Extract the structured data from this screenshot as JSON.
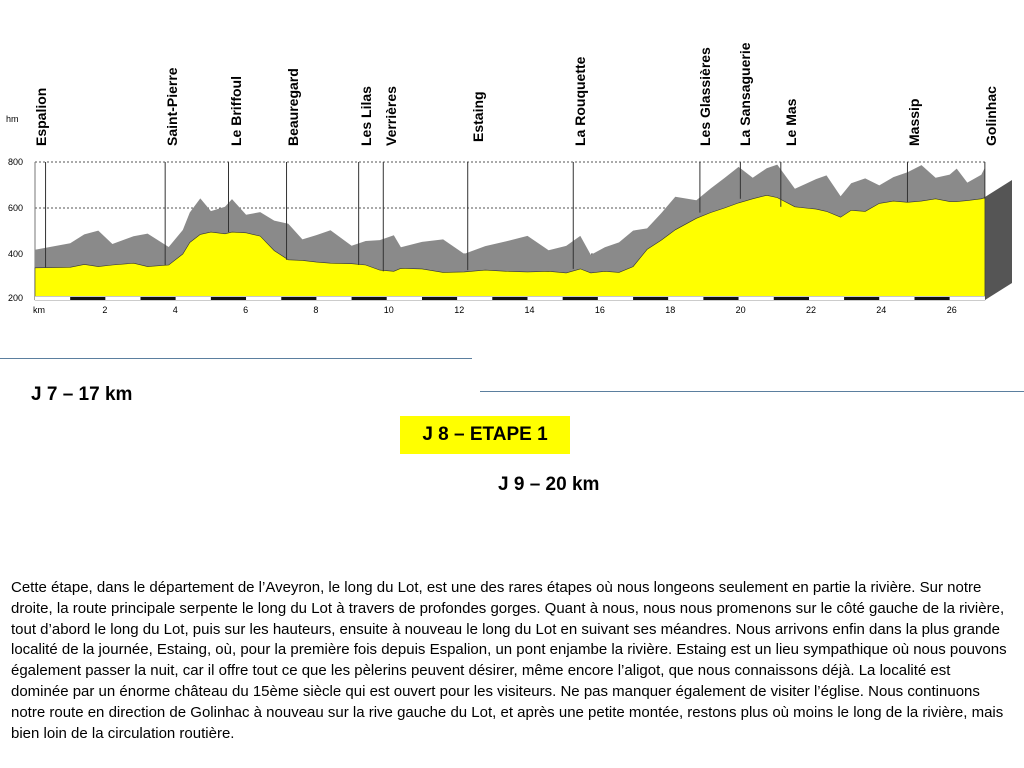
{
  "profile": {
    "unit_y": "hm",
    "unit_x": "km",
    "y_ticks": [
      "800",
      "600",
      "400",
      "200"
    ],
    "x_ticks": [
      "2",
      "4",
      "6",
      "8",
      "10",
      "12",
      "14",
      "16",
      "18",
      "20",
      "22",
      "24",
      "26"
    ],
    "colors": {
      "terrain": "#ffff00",
      "ridge": "#8a8a8a",
      "ridge_light": "#bdbdbd",
      "base": "#000000"
    }
  },
  "places": [
    "Espalion",
    "Saint-Pierre",
    "Le Briffoul",
    "Beauregard",
    "Les Lilas",
    "Verrières",
    "Estaing",
    "La Rouquette",
    "Les Glassières",
    "La Sansaguerie",
    "Le Mas",
    "Massip",
    "Golinhac"
  ],
  "chart_data": {
    "type": "area",
    "title": "",
    "xlabel": "km",
    "ylabel": "hm",
    "xlim": [
      0,
      27
    ],
    "ylim": [
      200,
      800
    ],
    "x_ticks": [
      2,
      4,
      6,
      8,
      10,
      12,
      14,
      16,
      18,
      20,
      22,
      24,
      26
    ],
    "y_ticks": [
      200,
      400,
      600,
      800
    ],
    "grid": true,
    "series": [
      {
        "x": [
          0,
          1,
          1.4,
          1.8,
          2.2,
          2.8,
          3.2,
          3.8,
          4.2,
          4.4,
          4.7,
          5.0,
          5.4,
          5.6,
          6.0,
          6.4,
          6.8,
          7.2,
          7.6,
          8.0,
          8.4,
          9.0,
          9.4,
          9.8,
          10.2,
          10.4,
          11.0,
          11.6,
          12.2,
          12.8,
          13.4,
          14.0,
          14.6,
          15.1,
          15.5,
          15.8,
          16.2,
          16.6,
          17.0,
          17.4,
          17.8,
          18.2,
          18.8,
          19.2,
          19.6,
          20.0,
          20.4,
          20.8,
          21.1,
          21.6,
          21.9,
          22.2,
          22.5,
          22.9,
          23.2,
          23.6,
          24.0,
          24.4,
          24.8,
          25.2,
          25.6,
          26.0,
          26.2,
          26.5,
          26.9,
          27.0
        ],
        "y": [
          340,
          342,
          355,
          345,
          352,
          360,
          345,
          352,
          400,
          450,
          485,
          495,
          488,
          495,
          492,
          478,
          415,
          375,
          372,
          365,
          360,
          358,
          352,
          330,
          325,
          338,
          335,
          320,
          322,
          330,
          325,
          322,
          325,
          318,
          335,
          318,
          325,
          320,
          345,
          420,
          460,
          505,
          555,
          580,
          600,
          622,
          640,
          655,
          645,
          605,
          600,
          595,
          585,
          560,
          590,
          585,
          620,
          630,
          625,
          630,
          640,
          628,
          628,
          632,
          640,
          645
        ]
      }
    ],
    "annotations": [
      "Espalion",
      "Saint-Pierre",
      "Le Briffoul",
      "Beauregard",
      "Les Lilas",
      "Verrières",
      "Estaing",
      "La Rouquette",
      "Les Glassières",
      "La Sansaguerie",
      "Le Mas",
      "Massip",
      "Golinhac"
    ]
  },
  "labels": {
    "day7": "J 7 – 17 km",
    "day8": "J 8 – ETAPE 1",
    "day9": "J 9 – 20 km"
  },
  "description": "Cette étape, dans le département de l’Aveyron, le long du Lot, est une des rares étapes où nous longeons seulement en partie la rivière. Sur notre droite, la route principale serpente le long du Lot à travers de profondes gorges. Quant à nous, nous nous promenons sur le côté gauche de la rivière, tout d’abord le long du Lot, puis sur les hauteurs, ensuite à nouveau le long du Lot en suivant ses méandres. Nous arrivons enfin dans la plus grande localité de la journée, Estaing, où, pour la première fois depuis Espalion, un pont enjambe la rivière. Estaing est un lieu sympathique où nous pouvons également passer la nuit, car il offre tout ce que les pèlerins peuvent désirer, même encore l’aligot, que nous connaissons déjà. La localité est dominée par un énorme château du 15ème siècle qui est ouvert pour les visiteurs. Ne pas manquer également de visiter l’église. Nous continuons notre route en direction de Golinhac à nouveau sur la rive gauche du Lot, et après une petite montée, restons plus où moins le long de la rivière, mais bien loin de la circulation routière."
}
